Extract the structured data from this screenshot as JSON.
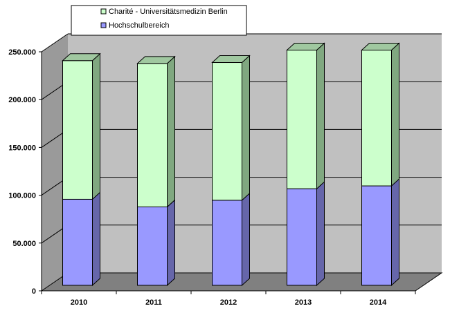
{
  "chart_data": {
    "type": "bar",
    "stacked": true,
    "three_d": true,
    "categories": [
      "2010",
      "2011",
      "2012",
      "2013",
      "2014"
    ],
    "series": [
      {
        "name": "Hochschulbereich",
        "values": [
          90000,
          82000,
          89000,
          101000,
          104000
        ],
        "color": "#9999ff"
      },
      {
        "name": "Charité - Universitätsmedizin Berlin",
        "values": [
          145000,
          150000,
          144000,
          145000,
          142000
        ],
        "color": "#ccffcc"
      }
    ],
    "ylim": [
      0,
      250000
    ],
    "yticks": [
      0,
      50000,
      100000,
      150000,
      200000,
      250000
    ],
    "ytick_labels": [
      "0",
      "50.000",
      "100.000",
      "150.000",
      "200.000",
      "250.000"
    ],
    "grid": true,
    "legend_position": "top-left",
    "legend_order": [
      "Charité - Universitätsmedizin Berlin",
      "Hochschulbereich"
    ],
    "title": "",
    "xlabel": "",
    "ylabel": ""
  },
  "colors": {
    "wall": "#c0c0c0",
    "side_wall": "#9a9a9a",
    "floor": "#808080",
    "grid": "#000000",
    "green_front": "#ccffcc",
    "green_side": "#80a880",
    "green_top": "#a0c8a0",
    "blue_front": "#9999ff",
    "blue_side": "#6666aa",
    "blue_top": "#7a7acc"
  }
}
